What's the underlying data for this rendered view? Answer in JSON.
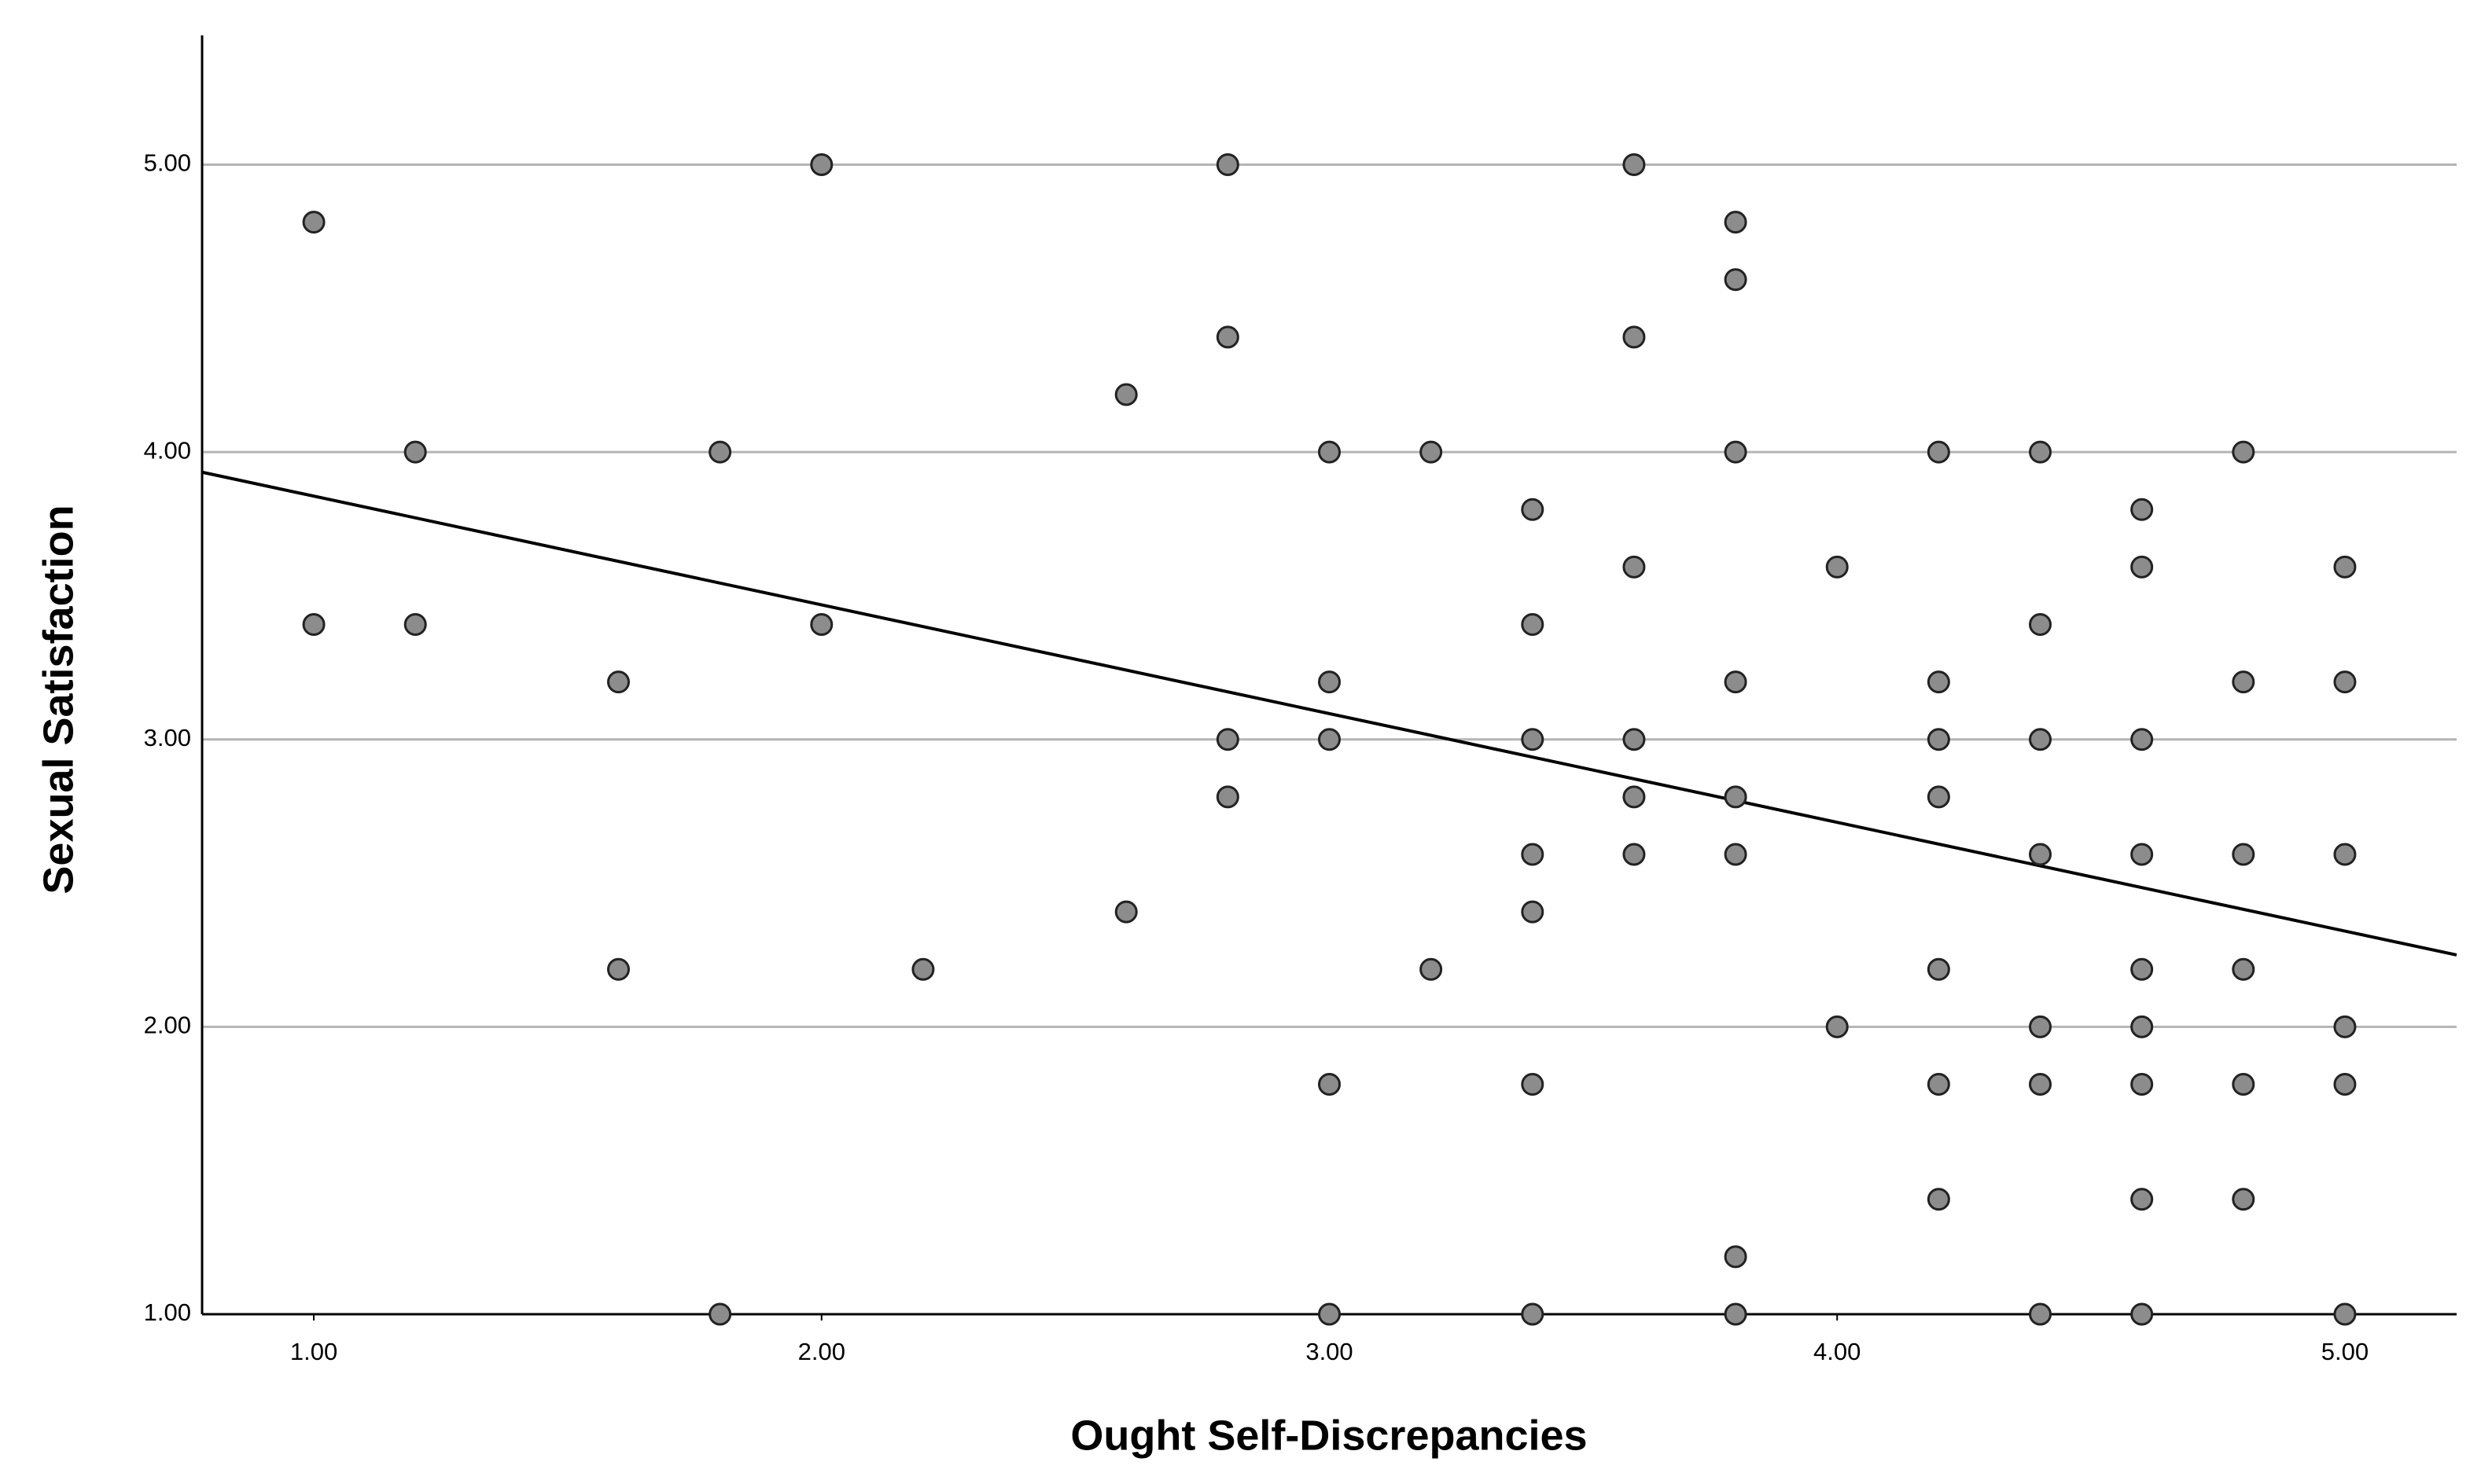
{
  "chart_data": {
    "type": "scatter",
    "x_label": "Ought Self-Discrepancies",
    "y_label": "Sexual Satisfaction",
    "xlim": [
      0.78,
      5.22
    ],
    "ylim": [
      1,
      5.45
    ],
    "xticks": [
      {
        "value": 1,
        "label": "1.00"
      },
      {
        "value": 2,
        "label": "2.00"
      },
      {
        "value": 3,
        "label": "3.00"
      },
      {
        "value": 4,
        "label": "4.00"
      },
      {
        "value": 5,
        "label": "5.00"
      }
    ],
    "yticks": [
      {
        "value": 1,
        "label": "1.00"
      },
      {
        "value": 2,
        "label": "2.00"
      },
      {
        "value": 3,
        "label": "3.00"
      },
      {
        "value": 4,
        "label": "4.00"
      },
      {
        "value": 5,
        "label": "5.00"
      }
    ],
    "grid": true,
    "color": "#8c8c8c",
    "x": [
      1.0,
      1.0,
      1.2,
      1.2,
      1.6,
      1.6,
      1.8,
      1.8,
      2.0,
      2.0,
      2.2,
      2.6,
      2.6,
      2.8,
      2.8,
      2.8,
      2.8,
      3.0,
      3.0,
      3.0,
      3.0,
      3.0,
      3.2,
      3.2,
      3.4,
      3.4,
      3.4,
      3.4,
      3.4,
      3.4,
      3.4,
      3.6,
      3.6,
      3.6,
      3.6,
      3.6,
      3.6,
      3.8,
      3.8,
      3.8,
      3.8,
      3.8,
      3.8,
      3.8,
      3.8,
      4.0,
      4.0,
      4.2,
      4.2,
      4.2,
      4.2,
      4.2,
      4.2,
      4.2,
      4.4,
      4.4,
      4.4,
      4.4,
      4.4,
      4.4,
      4.4,
      4.6,
      4.6,
      4.6,
      4.6,
      4.6,
      4.6,
      4.6,
      4.6,
      4.6,
      4.8,
      4.8,
      4.8,
      4.8,
      4.8,
      4.8,
      5.0,
      5.0,
      5.0,
      5.0,
      5.0,
      5.0
    ],
    "values": [
      4.8,
      3.4,
      4.0,
      3.4,
      3.2,
      2.2,
      4.0,
      1.0,
      5.0,
      3.4,
      2.2,
      4.2,
      2.4,
      5.0,
      4.4,
      3.0,
      2.8,
      4.0,
      3.2,
      3.0,
      1.8,
      1.0,
      4.0,
      2.2,
      3.8,
      3.4,
      3.0,
      2.6,
      2.4,
      1.8,
      1.0,
      5.0,
      4.4,
      3.6,
      3.0,
      2.8,
      2.6,
      4.8,
      4.6,
      4.0,
      3.2,
      2.8,
      2.6,
      1.2,
      1.0,
      3.6,
      2.0,
      4.0,
      3.2,
      3.0,
      2.8,
      2.2,
      1.8,
      1.4,
      4.0,
      3.4,
      3.0,
      2.6,
      2.0,
      1.8,
      1.0,
      3.8,
      3.6,
      3.0,
      2.6,
      2.2,
      2.0,
      1.8,
      1.4,
      1.0,
      4.0,
      3.2,
      2.6,
      2.2,
      1.8,
      1.4,
      3.6,
      3.2,
      2.6,
      2.0,
      1.8,
      1.0
    ],
    "fit_line": {
      "x": [
        0.78,
        5.22
      ],
      "y": [
        3.93,
        2.25
      ],
      "color": "#000000"
    }
  }
}
